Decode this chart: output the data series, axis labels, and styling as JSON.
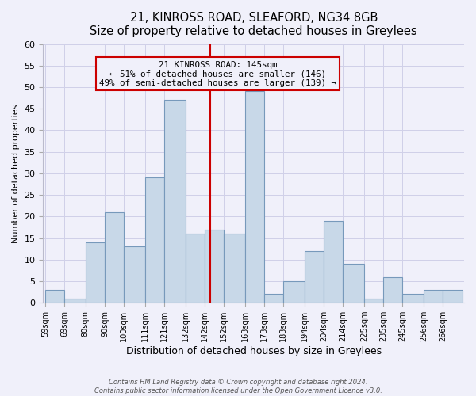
{
  "title": "21, KINROSS ROAD, SLEAFORD, NG34 8GB",
  "subtitle": "Size of property relative to detached houses in Greylees",
  "xlabel": "Distribution of detached houses by size in Greylees",
  "ylabel": "Number of detached properties",
  "bin_labels": [
    "59sqm",
    "69sqm",
    "80sqm",
    "90sqm",
    "100sqm",
    "111sqm",
    "121sqm",
    "132sqm",
    "142sqm",
    "152sqm",
    "163sqm",
    "173sqm",
    "183sqm",
    "194sqm",
    "204sqm",
    "214sqm",
    "225sqm",
    "235sqm",
    "245sqm",
    "256sqm",
    "266sqm"
  ],
  "bin_edges": [
    59,
    69,
    80,
    90,
    100,
    111,
    121,
    132,
    142,
    152,
    163,
    173,
    183,
    194,
    204,
    214,
    225,
    235,
    245,
    256,
    266,
    276
  ],
  "counts": [
    3,
    1,
    14,
    21,
    13,
    29,
    47,
    16,
    17,
    16,
    49,
    2,
    5,
    12,
    19,
    9,
    1,
    6,
    2,
    3,
    3
  ],
  "bar_facecolor": "#c8d8e8",
  "bar_edgecolor": "#7799bb",
  "property_line_x": 145,
  "property_line_color": "#cc0000",
  "box_text_line1": "21 KINROSS ROAD: 145sqm",
  "box_text_line2": "← 51% of detached houses are smaller (146)",
  "box_text_line3": "49% of semi-detached houses are larger (139) →",
  "box_edgecolor": "#cc0000",
  "ylim": [
    0,
    60
  ],
  "yticks": [
    0,
    5,
    10,
    15,
    20,
    25,
    30,
    35,
    40,
    45,
    50,
    55,
    60
  ],
  "footer_line1": "Contains HM Land Registry data © Crown copyright and database right 2024.",
  "footer_line2": "Contains public sector information licensed under the Open Government Licence v3.0.",
  "bg_color": "#f0f0fa",
  "plot_bg_color": "#f0f0fa",
  "grid_color": "#d0d0e8",
  "title_fontsize": 10.5,
  "subtitle_fontsize": 9.5,
  "xlabel_fontsize": 9,
  "ylabel_fontsize": 8,
  "ytick_fontsize": 8,
  "xtick_fontsize": 7
}
